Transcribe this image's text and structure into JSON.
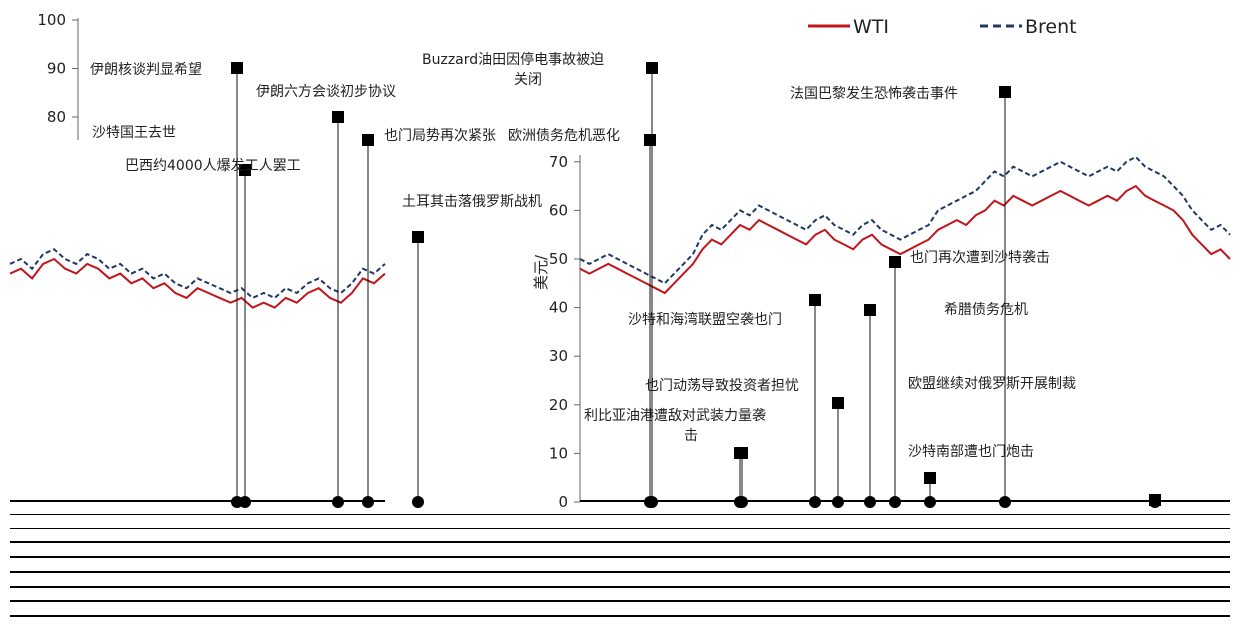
{
  "chart_data": {
    "type": "line",
    "title": "",
    "xlabel": "",
    "ylabel": "美元/",
    "ylim": [
      0,
      100
    ],
    "yticks": [
      0,
      10,
      20,
      30,
      40,
      50,
      60,
      70,
      80,
      90,
      100
    ],
    "legend": {
      "placement": "top-right"
    },
    "series": [
      {
        "name": "WTI",
        "color": "#c0151b",
        "style": "solid",
        "values": [
          47,
          48,
          46,
          49,
          50,
          48,
          47,
          49,
          48,
          46,
          47,
          45,
          46,
          44,
          45,
          43,
          42,
          44,
          43,
          42,
          41,
          42,
          40,
          41,
          40,
          42,
          41,
          43,
          44,
          42,
          41,
          43,
          46,
          45,
          47,
          48,
          47,
          48,
          49,
          48,
          47,
          46,
          45,
          44,
          43,
          45,
          47,
          49,
          52,
          54,
          53,
          55,
          57,
          56,
          58,
          57,
          56,
          55,
          54,
          53,
          55,
          56,
          54,
          53,
          52,
          54,
          55,
          53,
          52,
          51,
          52,
          53,
          54,
          56,
          57,
          58,
          57,
          59,
          60,
          62,
          61,
          63,
          62,
          61,
          62,
          63,
          64,
          63,
          62,
          61,
          62,
          63,
          62,
          64,
          65,
          63,
          62,
          61,
          60,
          58,
          55,
          53,
          51,
          52,
          50
        ]
      },
      {
        "name": "Brent",
        "color": "#1f3864",
        "style": "dashed",
        "values": [
          49,
          50,
          48,
          51,
          52,
          50,
          49,
          51,
          50,
          48,
          49,
          47,
          48,
          46,
          47,
          45,
          44,
          46,
          45,
          44,
          43,
          44,
          42,
          43,
          42,
          44,
          43,
          45,
          46,
          44,
          43,
          45,
          48,
          47,
          49,
          50,
          49,
          50,
          51,
          50,
          49,
          48,
          47,
          46,
          45,
          47,
          49,
          51,
          55,
          57,
          56,
          58,
          60,
          59,
          61,
          60,
          59,
          58,
          57,
          56,
          58,
          59,
          57,
          56,
          55,
          57,
          58,
          56,
          55,
          54,
          55,
          56,
          57,
          60,
          61,
          62,
          63,
          64,
          66,
          68,
          67,
          69,
          68,
          67,
          68,
          69,
          70,
          69,
          68,
          67,
          68,
          69,
          68,
          70,
          71,
          69,
          68,
          67,
          65,
          63,
          60,
          58,
          56,
          57,
          55
        ]
      }
    ],
    "event_markers": [
      {
        "label": "伊朗核谈判显希望",
        "value": 90
      },
      {
        "label": "伊朗六方会谈初步协议",
        "value": 80
      },
      {
        "label": "沙特国王去世",
        "value": 78
      },
      {
        "label": "也门局势再次紧张",
        "value": 78
      },
      {
        "label": "Buzzard油田因停电事故被迫关闭",
        "value": 90
      },
      {
        "label": "欧洲债务危机恶化",
        "value": 78
      },
      {
        "label": "法国巴黎发生恐怖袭击事件",
        "value": 85
      },
      {
        "label": "巴西约4000人爆发工人罢工",
        "value": 70
      },
      {
        "label": "土耳其击落俄罗斯战机",
        "value": 55
      },
      {
        "label": "也门再次遭到沙特袭击",
        "value": 50
      },
      {
        "label": "沙特和海湾联盟空袭也门",
        "value": 40
      },
      {
        "label": "希腊债务危机",
        "value": 40
      },
      {
        "label": "也门动荡导致投资者担忧",
        "value": 25
      },
      {
        "label": "欧盟继续对俄罗斯开展制裁",
        "value": 25
      },
      {
        "label": "利比亚油港遭敌对武装力量袭击",
        "value": 15
      },
      {
        "label": "沙特南部遭也门炮击",
        "value": 10
      }
    ]
  },
  "legend": {
    "wti_label": "WTI",
    "brent_label": "Brent"
  },
  "annotations": {
    "iran_talks": "伊朗核谈判显希望",
    "iran_six": "伊朗六方会谈初步协议",
    "saudi_king": "沙特国王去世",
    "yemen_tension": "也门局势再次紧张",
    "buzzard_1": "Buzzard油田因停电事故被迫",
    "buzzard_2": "关闭",
    "euro_debt": "欧洲债务危机恶化",
    "paris_attack": "法国巴黎发生恐怖袭击事件",
    "brazil_strike": "巴西约4000人爆发工人罢工",
    "turkey_jet": "土耳其击落俄罗斯战机",
    "yemen_attacked": "也门再次遭到沙特袭击",
    "saudi_gulf": "沙特和海湾联盟空袭也门",
    "greece_debt": "希腊债务危机",
    "yemen_unrest": "也门动荡导致投资者担忧",
    "eu_sanctions": "欧盟继续对俄罗斯开展制裁",
    "libya_1": "利比亚油港遭敌对武装力量袭",
    "libya_2": "击",
    "saudi_south": "沙特南部遭也门炮击"
  }
}
